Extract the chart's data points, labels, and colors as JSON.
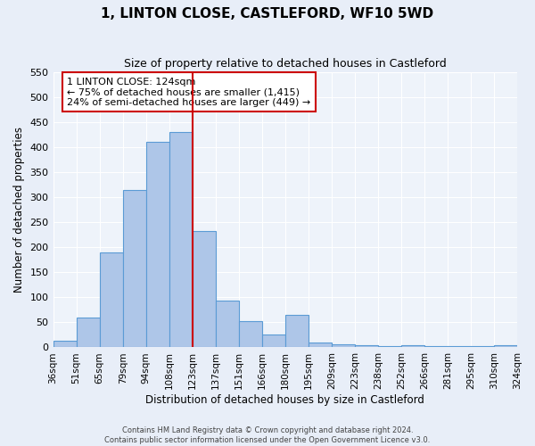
{
  "title": "1, LINTON CLOSE, CASTLEFORD, WF10 5WD",
  "subtitle": "Size of property relative to detached houses in Castleford",
  "xlabel": "Distribution of detached houses by size in Castleford",
  "ylabel": "Number of detached properties",
  "bin_labels": [
    "36sqm",
    "51sqm",
    "65sqm",
    "79sqm",
    "94sqm",
    "108sqm",
    "123sqm",
    "137sqm",
    "151sqm",
    "166sqm",
    "180sqm",
    "195sqm",
    "209sqm",
    "223sqm",
    "238sqm",
    "252sqm",
    "266sqm",
    "281sqm",
    "295sqm",
    "310sqm",
    "324sqm"
  ],
  "bar_heights": [
    13,
    60,
    190,
    315,
    410,
    430,
    232,
    93,
    52,
    25,
    65,
    10,
    7,
    5,
    3,
    5,
    3,
    3,
    3,
    5
  ],
  "bar_color": "#aec6e8",
  "bar_edge_color": "#5b9bd5",
  "property_line_color": "#cc0000",
  "annotation_text": "1 LINTON CLOSE: 124sqm\n← 75% of detached houses are smaller (1,415)\n24% of semi-detached houses are larger (449) →",
  "annotation_box_color": "#ffffff",
  "annotation_box_edge": "#cc0000",
  "ylim": [
    0,
    550
  ],
  "yticks": [
    0,
    50,
    100,
    150,
    200,
    250,
    300,
    350,
    400,
    450,
    500,
    550
  ],
  "bg_color": "#eef3fa",
  "fig_bg_color": "#e8eef8",
  "grid_color": "#ffffff",
  "footer_line1": "Contains HM Land Registry data © Crown copyright and database right 2024.",
  "footer_line2": "Contains public sector information licensed under the Open Government Licence v3.0."
}
